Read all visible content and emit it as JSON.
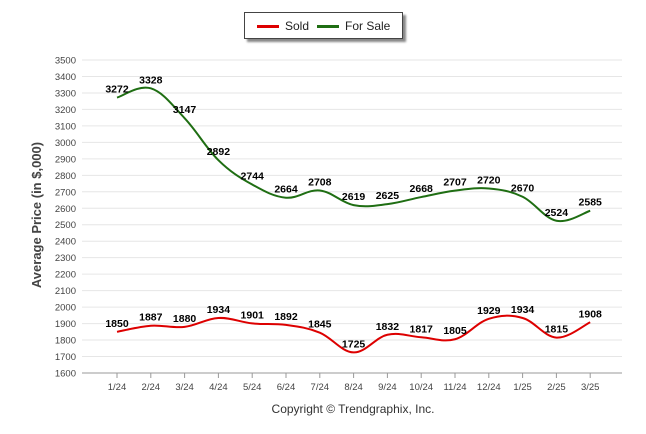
{
  "legend": {
    "sold_label": "Sold",
    "forsale_label": "For Sale"
  },
  "copyright": "Copyright © Trendgraphix, Inc.",
  "chart_data": {
    "type": "line",
    "title": "",
    "xlabel": "",
    "ylabel": "Average Price (in $,000)",
    "ylim": [
      1600,
      3500
    ],
    "ytick_step": 100,
    "grid": true,
    "legend_position": "top-center",
    "categories": [
      "1/24",
      "2/24",
      "3/24",
      "4/24",
      "5/24",
      "6/24",
      "7/24",
      "8/24",
      "9/24",
      "10/24",
      "11/24",
      "12/24",
      "1/25",
      "2/25",
      "3/25"
    ],
    "series": [
      {
        "name": "Sold",
        "color": "#dd0000",
        "values": [
          1850,
          1887,
          1880,
          1934,
          1901,
          1892,
          1845,
          1725,
          1832,
          1817,
          1805,
          1929,
          1934,
          1815,
          1908
        ]
      },
      {
        "name": "For Sale",
        "color": "#1f6e13",
        "values": [
          3272,
          3328,
          3147,
          2892,
          2744,
          2664,
          2708,
          2619,
          2625,
          2668,
          2707,
          2720,
          2670,
          2524,
          2585
        ]
      }
    ]
  }
}
